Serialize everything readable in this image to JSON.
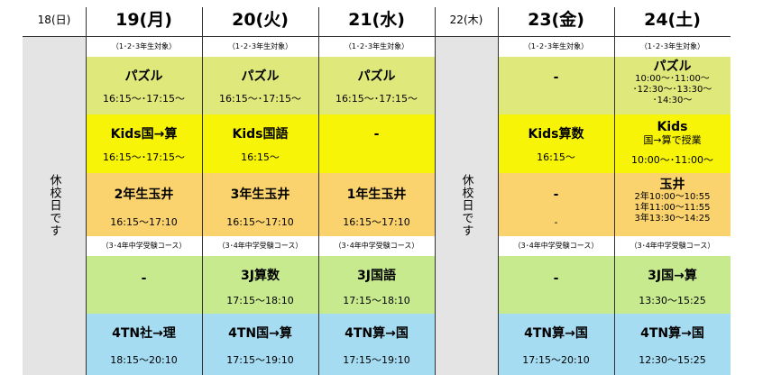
{
  "headers": {
    "d18": "18(日)",
    "d19": "19(月)",
    "d20": "20(火)",
    "d21": "21(水)",
    "d22": "22(木)",
    "d23": "23(金)",
    "d24": "24(土)"
  },
  "closed_label": "休校日です",
  "note_top": "（1･2･3年生対象）",
  "note_mid": "（3･4年中学受験コース）",
  "colors": {
    "puzzle": "#dfe87a",
    "kids": "#f7f408",
    "tamai": "#fad36e",
    "j3": "#c7ea8f",
    "tn4": "#a6dcf2",
    "closed": "#e4e4e4"
  },
  "d19": {
    "puzzle": {
      "title": "パズル",
      "time": "16:15～･17:15～"
    },
    "kids": {
      "title": "Kids国→算",
      "time": "16:15～･17:15～"
    },
    "tamai": {
      "title": "2年生玉井",
      "time": "16:15～17:10"
    },
    "j3": {
      "title": "-"
    },
    "tn4": {
      "title": "4TN社→理",
      "time": "18:15～20:10"
    }
  },
  "d20": {
    "puzzle": {
      "title": "パズル",
      "time": "16:15～･17:15～"
    },
    "kids": {
      "title": "Kids国語",
      "time": "16:15～"
    },
    "tamai": {
      "title": "3年生玉井",
      "time": "16:15～17:10"
    },
    "j3": {
      "title": "3J算数",
      "time": "17:15～18:10"
    },
    "tn4": {
      "title": "4TN国→算",
      "time": "17:15～19:10"
    }
  },
  "d21": {
    "puzzle": {
      "title": "パズル",
      "time": "16:15～･17:15～"
    },
    "kids": {
      "title": "-"
    },
    "tamai": {
      "title": "1年生玉井",
      "time": "16:15～17:10"
    },
    "j3": {
      "title": "3J国語",
      "time": "17:15～18:10"
    },
    "tn4": {
      "title": "4TN算→国",
      "time": "17:15～19:10"
    }
  },
  "d23": {
    "puzzle": {
      "title": "-"
    },
    "kids": {
      "title": "Kids算数",
      "time": "16:15～"
    },
    "tamai": {
      "title": "-",
      "dash2": "-"
    },
    "j3": {
      "title": "-"
    },
    "tn4": {
      "title": "4TN算→国",
      "time": "17:15～20:10"
    }
  },
  "d24": {
    "puzzle": {
      "title": "パズル",
      "line1": "10:00～･11:00～",
      "line2": "･12:30～･13:30～",
      "line3": "･14:30～"
    },
    "kids": {
      "title": "Kids",
      "sub": "国→算で授業",
      "time": "10:00～･11:00～"
    },
    "tamai": {
      "title": "玉井",
      "line1": "2年10:00～10:55",
      "line2": "1年11:00～11:55",
      "line3": "3年13:30～14:25"
    },
    "j3": {
      "title": "3J国→算",
      "time": "13:30～15:25"
    },
    "tn4": {
      "title": "4TN算→国",
      "time": "12:30～15:25"
    }
  }
}
